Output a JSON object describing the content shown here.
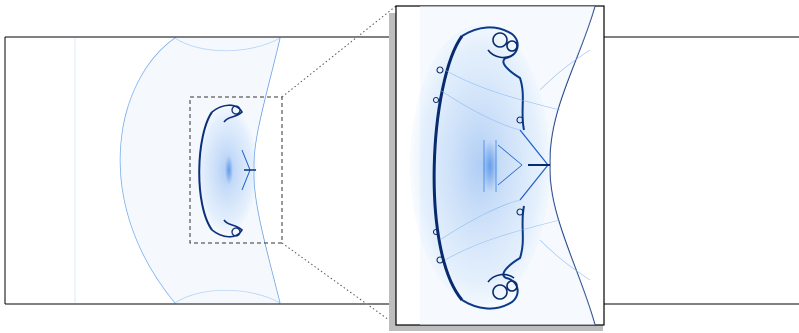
{
  "figure": {
    "kind": "shock-bubble-interaction-schlieren",
    "colormap": {
      "low": "#ffffff",
      "mid": "#5aa0ee",
      "high": "#0a2a6e",
      "accent": "#1565d8"
    },
    "frame_color": "#000000",
    "shadow_color": "#bdbdbd",
    "zoom_box_style": "dashed",
    "connector_style": "dotted"
  }
}
